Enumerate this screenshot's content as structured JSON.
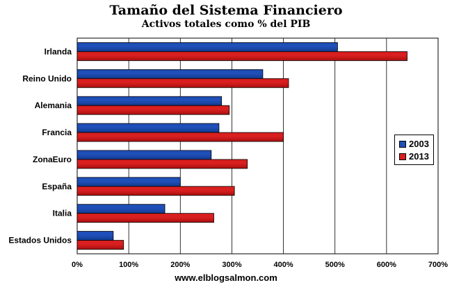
{
  "chart_data": {
    "type": "bar",
    "orientation": "horizontal",
    "title": "Tamaño del Sistema Financiero",
    "subtitle": "Activos totales como % del PIB",
    "categories": [
      "Irlanda",
      "Reino Unido",
      "Alemania",
      "Francia",
      "ZonaEuro",
      "España",
      "Italia",
      "Estados Unidos"
    ],
    "series": [
      {
        "name": "2003",
        "color": "#1f4fb8",
        "values": [
          505,
          360,
          280,
          275,
          260,
          200,
          170,
          70
        ]
      },
      {
        "name": "2013",
        "color": "#d91f1f",
        "values": [
          640,
          410,
          295,
          400,
          330,
          305,
          265,
          90
        ]
      }
    ],
    "xlim": [
      0,
      700
    ],
    "xticks": [
      "0%",
      "100%",
      "200%",
      "300%",
      "400%",
      "500%",
      "600%",
      "700%"
    ],
    "xlabel": "",
    "ylabel": "",
    "grid": "vertical",
    "legend_position": "right"
  },
  "footer": {
    "source": "www.elblogsalmon.com"
  }
}
